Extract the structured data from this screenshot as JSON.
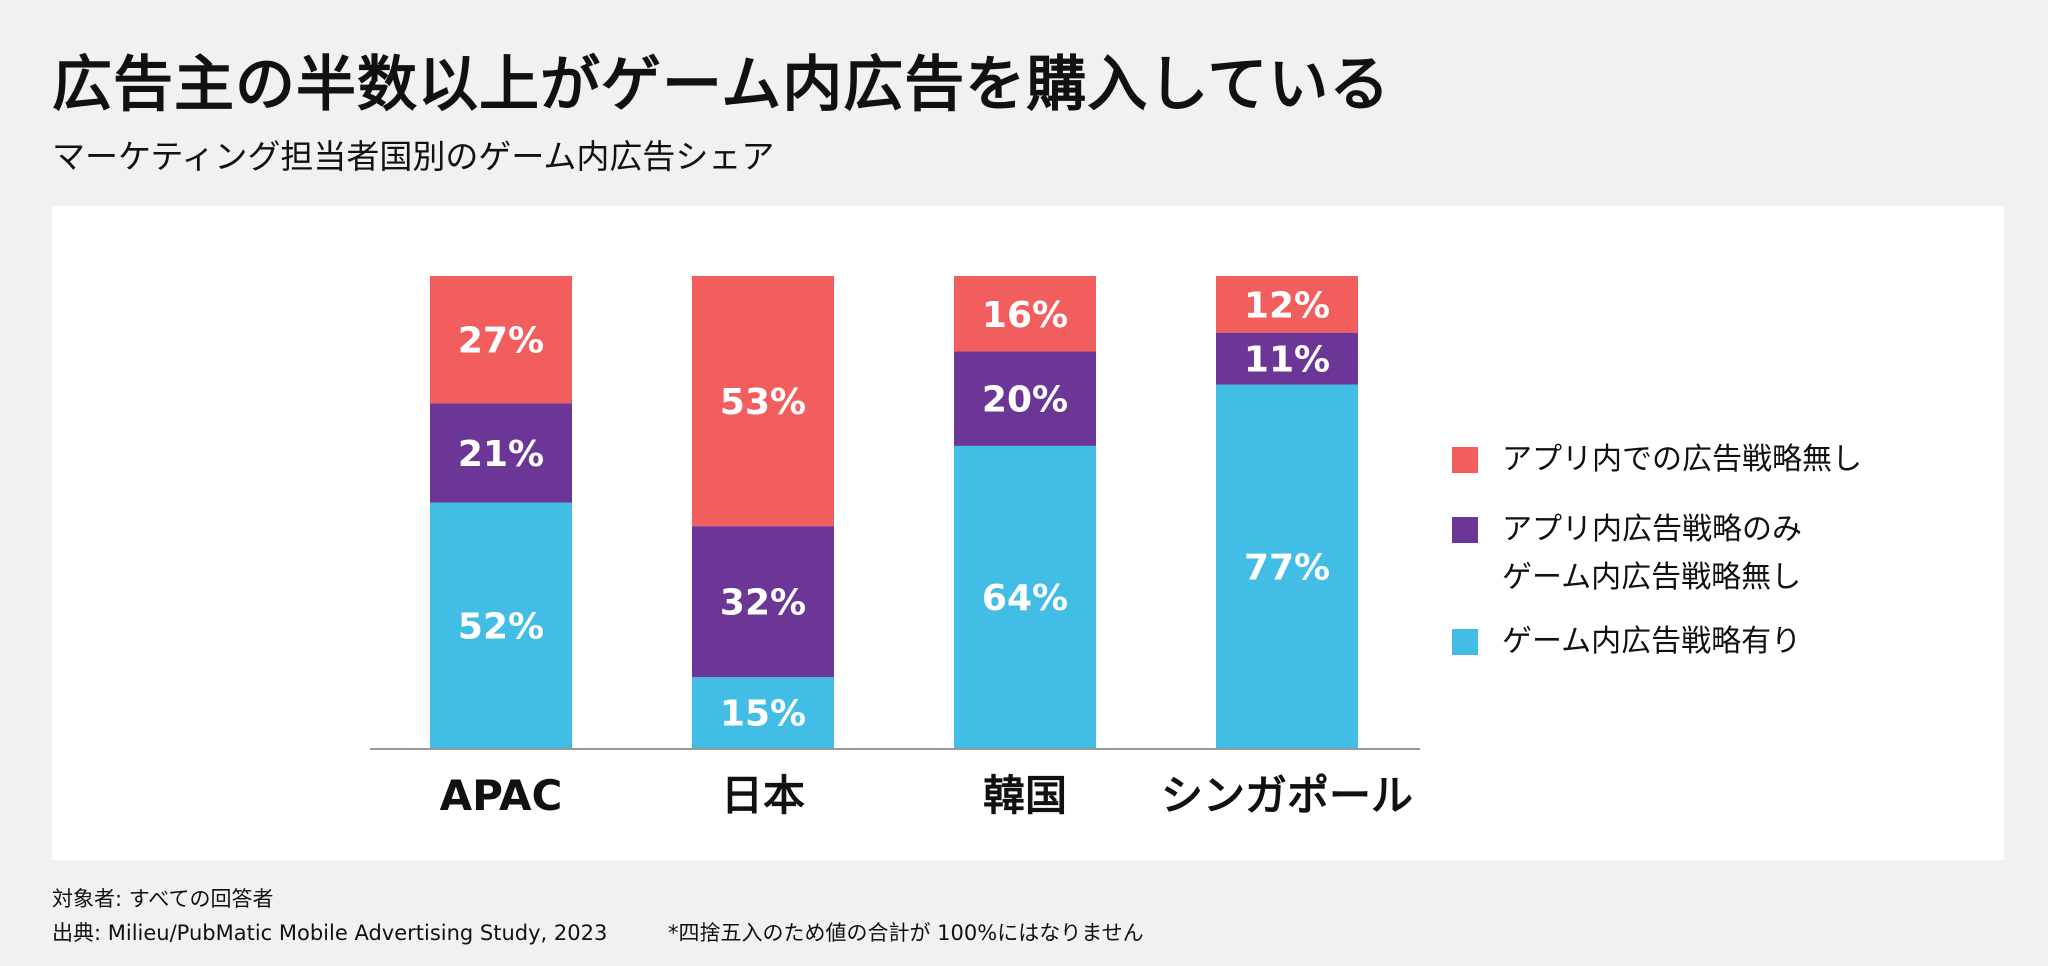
{
  "header": {
    "title": "広告主の半数以上がゲーム内広告を購入している",
    "subtitle": "マーケティング担当者国別のゲーム内広告シェア"
  },
  "chart_data": {
    "type": "bar",
    "stacked": true,
    "categories": [
      "APAC",
      "日本",
      "韓国",
      "シンガポール"
    ],
    "series": [
      {
        "name": "ゲーム内広告戦略有り",
        "color": "#42bde5",
        "values": [
          52,
          15,
          64,
          77
        ],
        "labels": [
          "52%",
          "15%",
          "64%",
          "77%"
        ]
      },
      {
        "name": "アプリ内広告戦略のみ ゲーム内広告戦略無し",
        "color": "#6b3696",
        "values": [
          21,
          32,
          20,
          11
        ],
        "labels": [
          "21%",
          "32%",
          "20%",
          "11%"
        ]
      },
      {
        "name": "アプリ内での広告戦略無し",
        "color": "#f25e5e",
        "values": [
          27,
          53,
          16,
          12
        ],
        "labels": [
          "27%",
          "53%",
          "16%",
          "12%"
        ]
      }
    ],
    "ylim": [
      0,
      100
    ],
    "legend_position": "right",
    "grid": false
  },
  "legend": {
    "items": [
      {
        "lines": [
          "アプリ内での広告戦略無し"
        ],
        "color": "#f25e5e",
        "icon": "red-square"
      },
      {
        "lines": [
          "アプリ内広告戦略のみ",
          "ゲーム内広告戦略無し"
        ],
        "color": "#6b3696",
        "icon": "purple-square"
      },
      {
        "lines": [
          "ゲーム内広告戦略有り"
        ],
        "color": "#42bde5",
        "icon": "blue-square"
      }
    ]
  },
  "footer": {
    "target": "対象者: すべての回答者",
    "source": "出典: Milieu/PubMatic Mobile Advertising Study, 2023",
    "note": "*四捨五入のため値の合計が 100%にはなりません"
  }
}
